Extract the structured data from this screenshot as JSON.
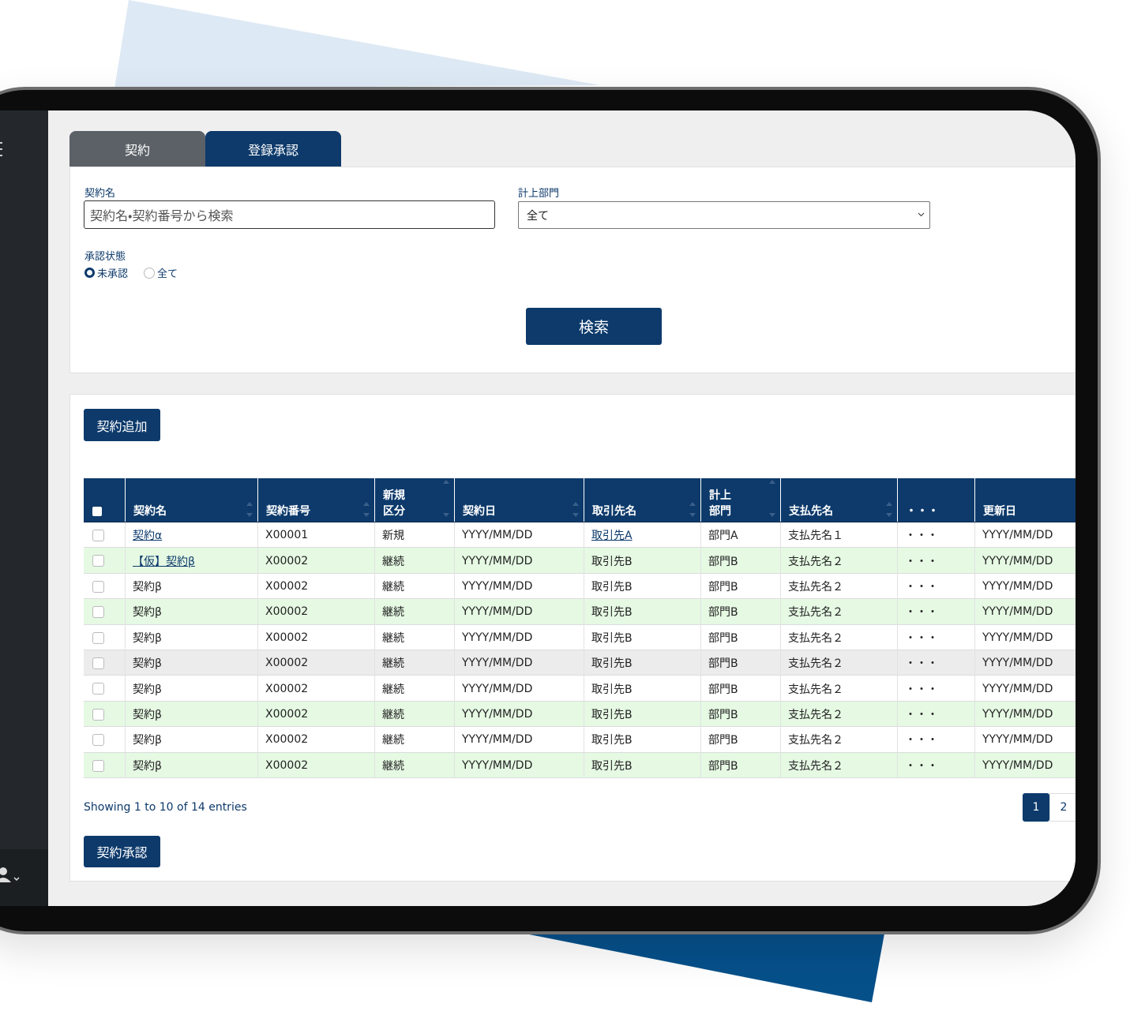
{
  "tabs": [
    "契約",
    "登録承認"
  ],
  "search": {
    "name_label": "契約名",
    "name_placeholder": "契約名・契約番号から検索",
    "dept_label": "計上部門",
    "dept_value": "全て",
    "status_label": "承認状態",
    "status_options": [
      "未承認",
      "全て"
    ],
    "button": "検索"
  },
  "list": {
    "add_button": "契約追加",
    "columns": [
      [
        "契約名"
      ],
      [
        "契約番号"
      ],
      [
        "新規",
        "区分"
      ],
      [
        "契約日"
      ],
      [
        "取引先名"
      ],
      [
        "計上",
        "部門"
      ],
      [
        "支払先名"
      ],
      [
        "・・・"
      ],
      [
        "更新日"
      ]
    ],
    "rows": [
      {
        "cells": [
          "契約α",
          "X00001",
          "新規",
          "YYYY/MM/DD",
          "取引先A",
          "部門A",
          "支払先名１",
          "・・・",
          "YYYY/MM/DD"
        ],
        "links": [
          0,
          4
        ],
        "shade": "#ffffff"
      },
      {
        "cells": [
          "【仮】契約β",
          "X00002",
          "継続",
          "YYYY/MM/DD",
          "取引先B",
          "部門B",
          "支払先名２",
          "・・・",
          "YYYY/MM/DD"
        ],
        "links": [
          0
        ],
        "shade": "#e5f9e3"
      },
      {
        "cells": [
          "契約β",
          "X00002",
          "継続",
          "YYYY/MM/DD",
          "取引先B",
          "部門B",
          "支払先名２",
          "・・・",
          "YYYY/MM/DD"
        ],
        "shade": "#ffffff"
      },
      {
        "cells": [
          "契約β",
          "X00002",
          "継続",
          "YYYY/MM/DD",
          "取引先B",
          "部門B",
          "支払先名２",
          "・・・",
          "YYYY/MM/DD"
        ],
        "shade": "#e5f9e3"
      },
      {
        "cells": [
          "契約β",
          "X00002",
          "継続",
          "YYYY/MM/DD",
          "取引先B",
          "部門B",
          "支払先名２",
          "・・・",
          "YYYY/MM/DD"
        ],
        "shade": "#ffffff"
      },
      {
        "cells": [
          "契約β",
          "X00002",
          "継続",
          "YYYY/MM/DD",
          "取引先B",
          "部門B",
          "支払先名２",
          "・・・",
          "YYYY/MM/DD"
        ],
        "shade": "#ececec"
      },
      {
        "cells": [
          "契約β",
          "X00002",
          "継続",
          "YYYY/MM/DD",
          "取引先B",
          "部門B",
          "支払先名２",
          "・・・",
          "YYYY/MM/DD"
        ],
        "shade": "#ffffff"
      },
      {
        "cells": [
          "契約β",
          "X00002",
          "継続",
          "YYYY/MM/DD",
          "取引先B",
          "部門B",
          "支払先名２",
          "・・・",
          "YYYY/MM/DD"
        ],
        "shade": "#e5f9e3"
      },
      {
        "cells": [
          "契約β",
          "X00002",
          "継続",
          "YYYY/MM/DD",
          "取引先B",
          "部門B",
          "支払先名２",
          "・・・",
          "YYYY/MM/DD"
        ],
        "shade": "#ffffff"
      },
      {
        "cells": [
          "契約β",
          "X00002",
          "継続",
          "YYYY/MM/DD",
          "取引先B",
          "部門B",
          "支払先名２",
          "・・・",
          "YYYY/MM/DD"
        ],
        "shade": "#e5f9e3"
      }
    ],
    "info": "Showing 1 to 10 of 14 entries",
    "pages": [
      "1",
      "2"
    ],
    "approve_button": "契約承認"
  }
}
